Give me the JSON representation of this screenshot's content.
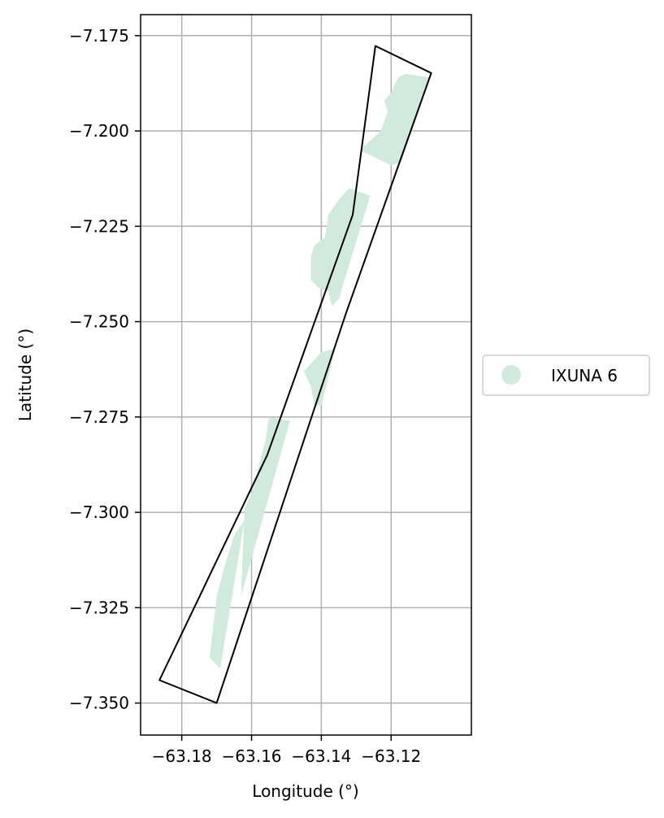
{
  "chart_data": {
    "type": "map",
    "xlabel": "Longitude (°)",
    "ylabel": "Latitude (°)",
    "xlim": [
      -63.1918,
      -63.097
    ],
    "ylim": [
      -7.3584,
      -7.1695
    ],
    "x_ticks": [
      {
        "value": -63.18,
        "label": "−63.18"
      },
      {
        "value": -63.16,
        "label": "−63.16"
      },
      {
        "value": -63.14,
        "label": "−63.14"
      },
      {
        "value": -63.12,
        "label": "−63.12"
      }
    ],
    "y_ticks": [
      {
        "value": -7.175,
        "label": "−7.175"
      },
      {
        "value": -7.2,
        "label": "−7.200"
      },
      {
        "value": -7.225,
        "label": "−7.225"
      },
      {
        "value": -7.25,
        "label": "−7.250"
      },
      {
        "value": -7.275,
        "label": "−7.275"
      },
      {
        "value": -7.3,
        "label": "−7.300"
      },
      {
        "value": -7.325,
        "label": "−7.325"
      },
      {
        "value": -7.35,
        "label": "−7.350"
      }
    ],
    "grid": true,
    "legend_placement": "right-center",
    "series": [
      {
        "name": "IXUNA 6",
        "color": "#d0ebde",
        "polygons": [
          [
            [
              -63.118,
              -7.186
            ],
            [
              -63.116,
              -7.185
            ],
            [
              -63.109,
              -7.186
            ],
            [
              -63.117,
              -7.208
            ],
            [
              -63.12,
              -7.209
            ],
            [
              -63.129,
              -7.205
            ],
            [
              -63.123,
              -7.2
            ],
            [
              -63.121,
              -7.195
            ],
            [
              -63.122,
              -7.192
            ],
            [
              -63.12,
              -7.19
            ]
          ],
          [
            [
              -63.132,
              -7.215
            ],
            [
              -63.126,
              -7.217
            ],
            [
              -63.135,
              -7.244
            ],
            [
              -63.137,
              -7.246
            ],
            [
              -63.138,
              -7.242
            ],
            [
              -63.141,
              -7.241
            ],
            [
              -63.143,
              -7.239
            ],
            [
              -63.143,
              -7.233
            ],
            [
              -63.142,
              -7.23
            ],
            [
              -63.139,
              -7.228
            ],
            [
              -63.138,
              -7.222
            ],
            [
              -63.135,
              -7.218
            ]
          ],
          [
            [
              -63.14,
              -7.258
            ],
            [
              -63.136,
              -7.257
            ],
            [
              -63.14,
              -7.272
            ],
            [
              -63.142,
              -7.272
            ],
            [
              -63.143,
              -7.267
            ],
            [
              -63.145,
              -7.263
            ],
            [
              -63.142,
              -7.26
            ]
          ],
          [
            [
              -63.155,
              -7.275
            ],
            [
              -63.149,
              -7.276
            ],
            [
              -63.163,
              -7.322
            ],
            [
              -63.162,
              -7.299
            ],
            [
              -63.16,
              -7.295
            ],
            [
              -63.159,
              -7.292
            ],
            [
              -63.158,
              -7.288
            ],
            [
              -63.156,
              -7.281
            ]
          ],
          [
            [
              -63.165,
              -7.306
            ],
            [
              -63.162,
              -7.302
            ],
            [
              -63.169,
              -7.341
            ],
            [
              -63.172,
              -7.338
            ],
            [
              -63.171,
              -7.33
            ],
            [
              -63.17,
              -7.322
            ],
            [
              -63.168,
              -7.315
            ]
          ]
        ]
      }
    ],
    "outline": {
      "color": "#000000",
      "points": [
        [
          -63.1245,
          -7.1777
        ],
        [
          -63.1085,
          -7.1848
        ],
        [
          -63.133,
          -7.248
        ],
        [
          -63.17,
          -7.35
        ],
        [
          -63.1864,
          -7.344
        ],
        [
          -63.1555,
          -7.285
        ],
        [
          -63.131,
          -7.222
        ]
      ]
    }
  }
}
